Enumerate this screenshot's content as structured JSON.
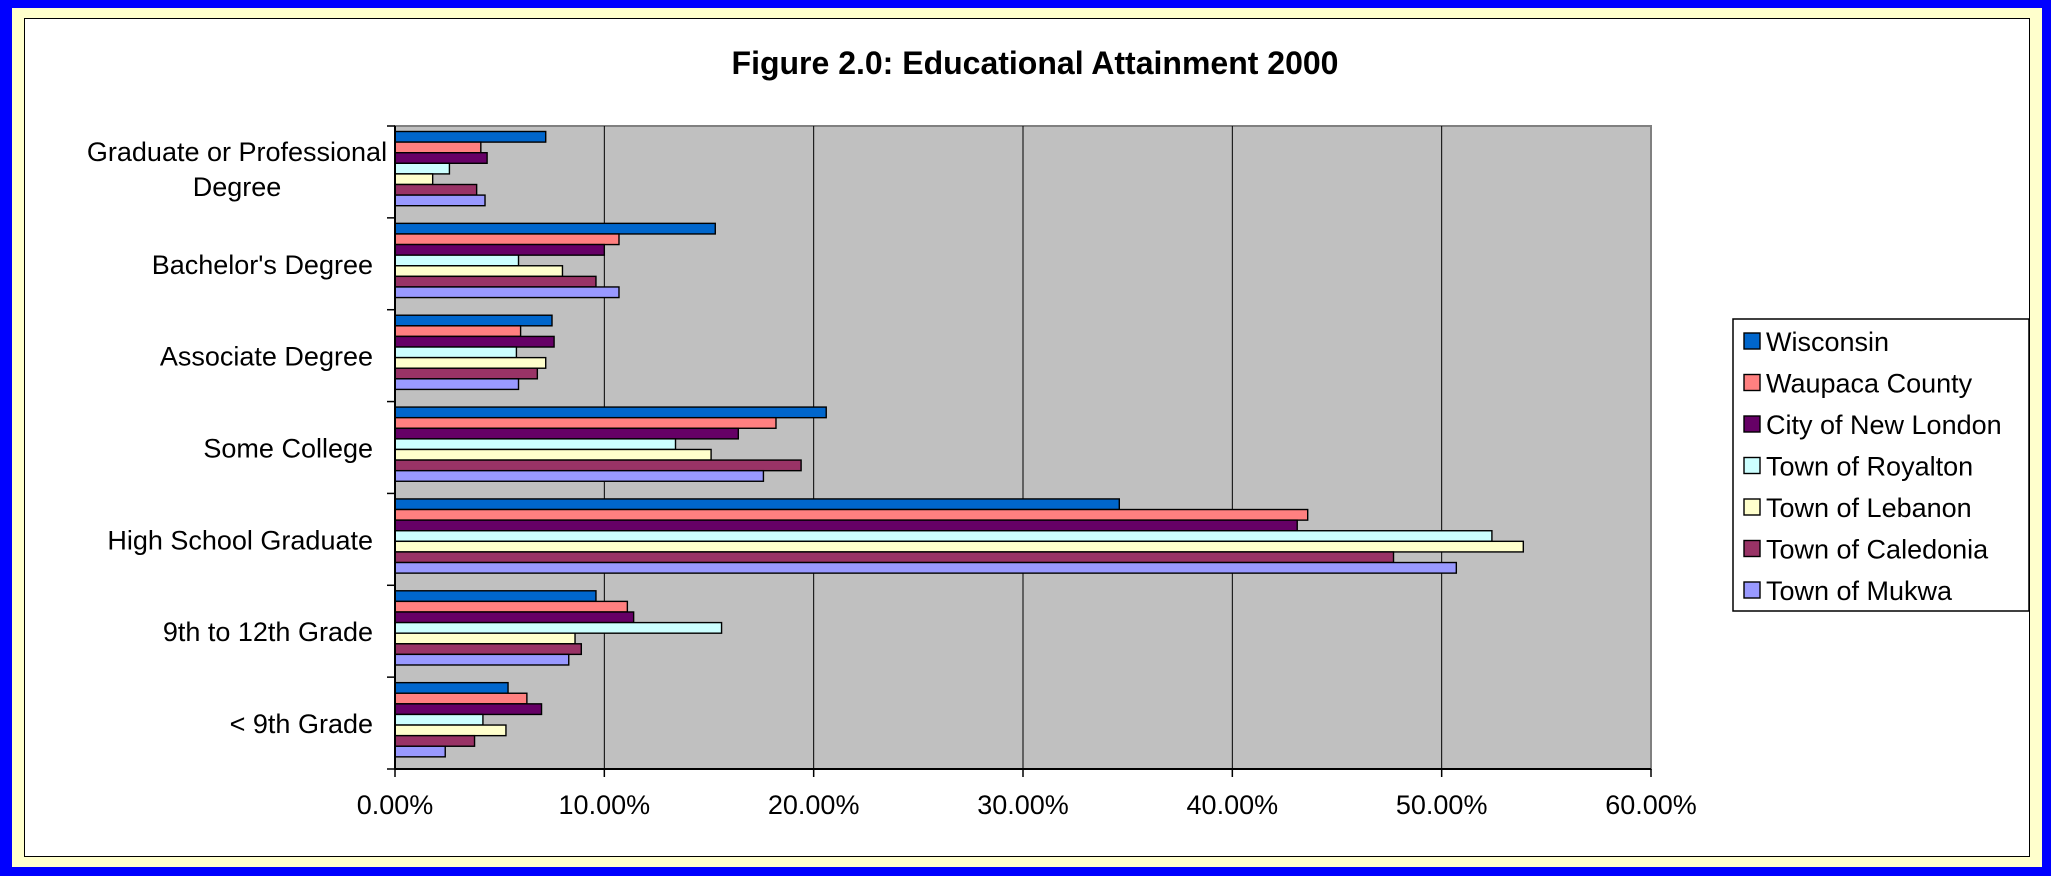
{
  "chart_data": {
    "type": "bar",
    "orientation": "horizontal",
    "title": "Figure 2.0: Educational Attainment 2000",
    "categories": [
      [
        "Graduate or Professional",
        "Degree"
      ],
      [
        "Bachelor's Degree"
      ],
      [
        "Associate Degree"
      ],
      [
        "Some College"
      ],
      [
        "High School Graduate"
      ],
      [
        "9th to 12th Grade"
      ],
      [
        "< 9th Grade"
      ]
    ],
    "xlim": [
      0,
      60
    ],
    "xticks": [
      "0.00%",
      "10.00%",
      "20.00%",
      "30.00%",
      "40.00%",
      "50.00%",
      "60.00%"
    ],
    "grid": "vertical",
    "plot_background": "#c0c0c0",
    "legend_position": "right",
    "series": [
      {
        "name": "Wisconsin",
        "color": "#0066cc",
        "values": [
          7.2,
          15.3,
          7.5,
          20.6,
          34.6,
          9.6,
          5.4
        ]
      },
      {
        "name": "Waupaca County",
        "color": "#ff8080",
        "values": [
          4.1,
          10.7,
          6.0,
          18.2,
          43.6,
          11.1,
          6.3
        ]
      },
      {
        "name": "City of New London",
        "color": "#660066",
        "values": [
          4.4,
          10.0,
          7.6,
          16.4,
          43.1,
          11.4,
          7.0
        ]
      },
      {
        "name": "Town of Royalton",
        "color": "#ccffff",
        "values": [
          2.6,
          5.9,
          5.8,
          13.4,
          52.4,
          15.6,
          4.2
        ]
      },
      {
        "name": "Town of Lebanon",
        "color": "#ffffcc",
        "values": [
          1.8,
          8.0,
          7.2,
          15.1,
          53.9,
          8.6,
          5.3
        ]
      },
      {
        "name": "Town of Caledonia",
        "color": "#993366",
        "values": [
          3.9,
          9.6,
          6.8,
          19.4,
          47.7,
          8.9,
          3.8
        ]
      },
      {
        "name": "Town of Mukwa",
        "color": "#9999ff",
        "values": [
          4.3,
          10.7,
          5.9,
          17.6,
          50.7,
          8.3,
          2.4
        ]
      }
    ]
  }
}
